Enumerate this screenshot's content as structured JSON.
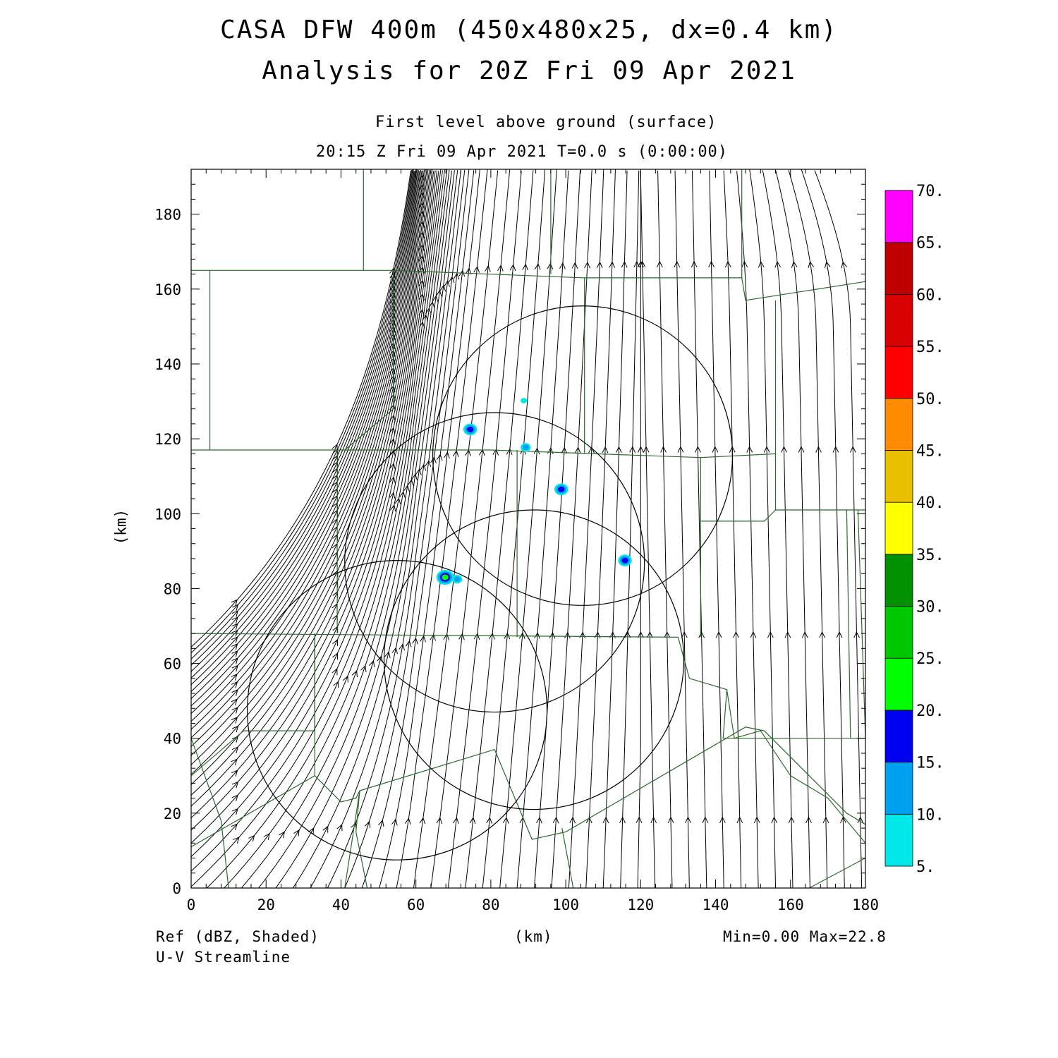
{
  "header": {
    "title": "CASA DFW 400m (450x480x25, dx=0.4 km)",
    "subtitle": "Analysis for 20Z Fri 09 Apr 2021",
    "level": "First level above ground (surface)",
    "time": "20:15 Z Fri 09 Apr 2021    T=0.0 s (0:00:00)"
  },
  "footer": {
    "field_label": "Ref (dBZ, Shaded)",
    "vector_label": "U-V Streamline",
    "xlabel": "(km)",
    "minmax": "Min=0.00 Max=22.8"
  },
  "chart_data": {
    "type": "heatmap",
    "xlabel": "(km)",
    "ylabel": "(km)",
    "xlim": [
      0,
      180
    ],
    "ylim": [
      0,
      192
    ],
    "xticks": [
      0,
      20,
      40,
      60,
      80,
      100,
      120,
      140,
      160,
      180
    ],
    "yticks": [
      0,
      20,
      40,
      60,
      80,
      100,
      120,
      140,
      160,
      180
    ],
    "colorbar": {
      "levels": [
        "5.",
        "10.",
        "15.",
        "20.",
        "25.",
        "30.",
        "35.",
        "40.",
        "45.",
        "50.",
        "55.",
        "60.",
        "65.",
        "70."
      ],
      "colors": [
        "#00e8e8",
        "#00a0f0",
        "#0000f0",
        "#00ff00",
        "#00c800",
        "#009000",
        "#ffff00",
        "#e8c000",
        "#ff8c00",
        "#ff0000",
        "#d80000",
        "#c00000",
        "#ff00ff"
      ]
    },
    "reflectivity_cells": [
      {
        "x": 74.5,
        "y": 122.5,
        "dbz": 16
      },
      {
        "x": 88.8,
        "y": 130.2,
        "dbz": 6
      },
      {
        "x": 89.3,
        "y": 117.7,
        "dbz": 10
      },
      {
        "x": 98.8,
        "y": 106.5,
        "dbz": 18
      },
      {
        "x": 67.8,
        "y": 83.0,
        "dbz": 22.8
      },
      {
        "x": 71.0,
        "y": 82.5,
        "dbz": 10
      },
      {
        "x": 115.8,
        "y": 87.5,
        "dbz": 18
      }
    ],
    "radar_range_rings": [
      {
        "cx": 104.5,
        "cy": 115.5,
        "r": 40
      },
      {
        "cx": 81.0,
        "cy": 87.0,
        "r": 40
      },
      {
        "cx": 91.5,
        "cy": 61.0,
        "r": 40
      },
      {
        "cx": 55.0,
        "cy": 47.5,
        "r": 40
      }
    ],
    "streamlines": "U-V surface wind, flow toward north; southwesterly over west half, southerly over east half, southeasterly in upper-right corner",
    "stats": {
      "min": 0.0,
      "max": 22.8
    }
  }
}
